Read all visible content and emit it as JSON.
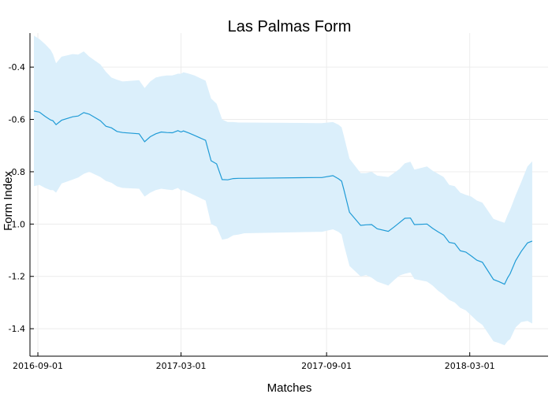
{
  "chart_data": {
    "type": "area",
    "title": "Las Palmas Form",
    "xlabel": "Matches",
    "ylabel": "Form Index",
    "x_type": "date",
    "x_ticks": [
      "2016-09-01",
      "2017-03-01",
      "2017-09-01",
      "2018-03-01"
    ],
    "xlim": [
      "2016-08-22",
      "2018-06-08"
    ],
    "y_ticks": [
      -0.4,
      -0.6,
      -0.8,
      -1.0,
      -1.2,
      -1.4
    ],
    "y_tick_labels": [
      "-0.4",
      "-0.6",
      "-0.8",
      "-1.0",
      "-1.2",
      "-1.4"
    ],
    "ylim": [
      -1.505,
      -0.27
    ],
    "grid": true,
    "colors": {
      "line": "#1f9bd6",
      "band": "#dbeffb",
      "grid": "#ececec",
      "axis": "#000000"
    },
    "series": [
      {
        "x": [
          "2016-08-27",
          "2016-09-03",
          "2016-09-10",
          "2016-09-17",
          "2016-09-20",
          "2016-09-24",
          "2016-10-01",
          "2016-10-15",
          "2016-10-22",
          "2016-10-29",
          "2016-11-05",
          "2016-11-19",
          "2016-11-26",
          "2016-12-03",
          "2016-12-10",
          "2016-12-17",
          "2017-01-07",
          "2017-01-14",
          "2017-01-21",
          "2017-01-28",
          "2017-02-04",
          "2017-02-11",
          "2017-02-18",
          "2017-02-25",
          "2017-03-01",
          "2017-03-04",
          "2017-03-11",
          "2017-03-18",
          "2017-04-01",
          "2017-04-08",
          "2017-04-15",
          "2017-04-22",
          "2017-04-29",
          "2017-05-06",
          "2017-05-13",
          "2017-05-20",
          "2017-08-19",
          "2017-08-26",
          "2017-09-09",
          "2017-09-16",
          "2017-09-20",
          "2017-09-23",
          "2017-09-30",
          "2017-10-14",
          "2017-10-21",
          "2017-10-28",
          "2017-11-04",
          "2017-11-18",
          "2017-11-25",
          "2017-12-02",
          "2017-12-09",
          "2017-12-16",
          "2017-12-21",
          "2018-01-06",
          "2018-01-13",
          "2018-01-20",
          "2018-01-27",
          "2018-02-03",
          "2018-02-10",
          "2018-02-17",
          "2018-02-24",
          "2018-03-03",
          "2018-03-10",
          "2018-03-17",
          "2018-03-31",
          "2018-04-07",
          "2018-04-14",
          "2018-04-18",
          "2018-04-21",
          "2018-04-28",
          "2018-05-05",
          "2018-05-13",
          "2018-05-19"
        ],
        "y": [
          -0.568,
          -0.572,
          -0.588,
          -0.602,
          -0.605,
          -0.62,
          -0.603,
          -0.59,
          -0.587,
          -0.574,
          -0.58,
          -0.605,
          -0.626,
          -0.632,
          -0.646,
          -0.65,
          -0.655,
          -0.685,
          -0.666,
          -0.655,
          -0.648,
          -0.65,
          -0.651,
          -0.643,
          -0.648,
          -0.644,
          -0.652,
          -0.661,
          -0.68,
          -0.758,
          -0.77,
          -0.83,
          -0.831,
          -0.826,
          -0.825,
          -0.825,
          -0.822,
          -0.822,
          -0.815,
          -0.827,
          -0.836,
          -0.87,
          -0.955,
          -1.005,
          -1.003,
          -1.002,
          -1.018,
          -1.028,
          -1.012,
          -0.995,
          -0.978,
          -0.977,
          -1.002,
          -1.0,
          -1.016,
          -1.03,
          -1.042,
          -1.07,
          -1.074,
          -1.102,
          -1.107,
          -1.122,
          -1.138,
          -1.146,
          -1.212,
          -1.22,
          -1.23,
          -1.205,
          -1.19,
          -1.14,
          -1.105,
          -1.072,
          -1.065
        ],
        "lower": [
          -0.855,
          -0.85,
          -0.862,
          -0.87,
          -0.87,
          -0.88,
          -0.845,
          -0.83,
          -0.822,
          -0.808,
          -0.8,
          -0.82,
          -0.835,
          -0.842,
          -0.856,
          -0.862,
          -0.865,
          -0.895,
          -0.88,
          -0.87,
          -0.865,
          -0.868,
          -0.87,
          -0.862,
          -0.872,
          -0.87,
          -0.88,
          -0.89,
          -0.91,
          -1.0,
          -1.01,
          -1.06,
          -1.055,
          -1.043,
          -1.04,
          -1.035,
          -1.03,
          -1.03,
          -1.02,
          -1.03,
          -1.04,
          -1.08,
          -1.16,
          -1.2,
          -1.195,
          -1.205,
          -1.22,
          -1.235,
          -1.215,
          -1.197,
          -1.19,
          -1.185,
          -1.21,
          -1.22,
          -1.235,
          -1.255,
          -1.27,
          -1.29,
          -1.3,
          -1.32,
          -1.33,
          -1.35,
          -1.37,
          -1.385,
          -1.448,
          -1.455,
          -1.463,
          -1.447,
          -1.44,
          -1.395,
          -1.375,
          -1.37,
          -1.38
        ],
        "upper": [
          -0.28,
          -0.293,
          -0.312,
          -0.334,
          -0.35,
          -0.385,
          -0.36,
          -0.35,
          -0.352,
          -0.34,
          -0.36,
          -0.39,
          -0.418,
          -0.44,
          -0.448,
          -0.455,
          -0.45,
          -0.48,
          -0.455,
          -0.44,
          -0.435,
          -0.432,
          -0.432,
          -0.425,
          -0.425,
          -0.42,
          -0.425,
          -0.432,
          -0.452,
          -0.52,
          -0.54,
          -0.6,
          -0.61,
          -0.61,
          -0.612,
          -0.612,
          -0.614,
          -0.614,
          -0.61,
          -0.62,
          -0.63,
          -0.665,
          -0.75,
          -0.805,
          -0.805,
          -0.8,
          -0.815,
          -0.82,
          -0.805,
          -0.79,
          -0.768,
          -0.762,
          -0.792,
          -0.78,
          -0.796,
          -0.808,
          -0.82,
          -0.85,
          -0.855,
          -0.88,
          -0.888,
          -0.895,
          -0.91,
          -0.918,
          -0.98,
          -0.988,
          -0.995,
          -0.965,
          -0.945,
          -0.89,
          -0.84,
          -0.78,
          -0.76
        ]
      }
    ]
  }
}
